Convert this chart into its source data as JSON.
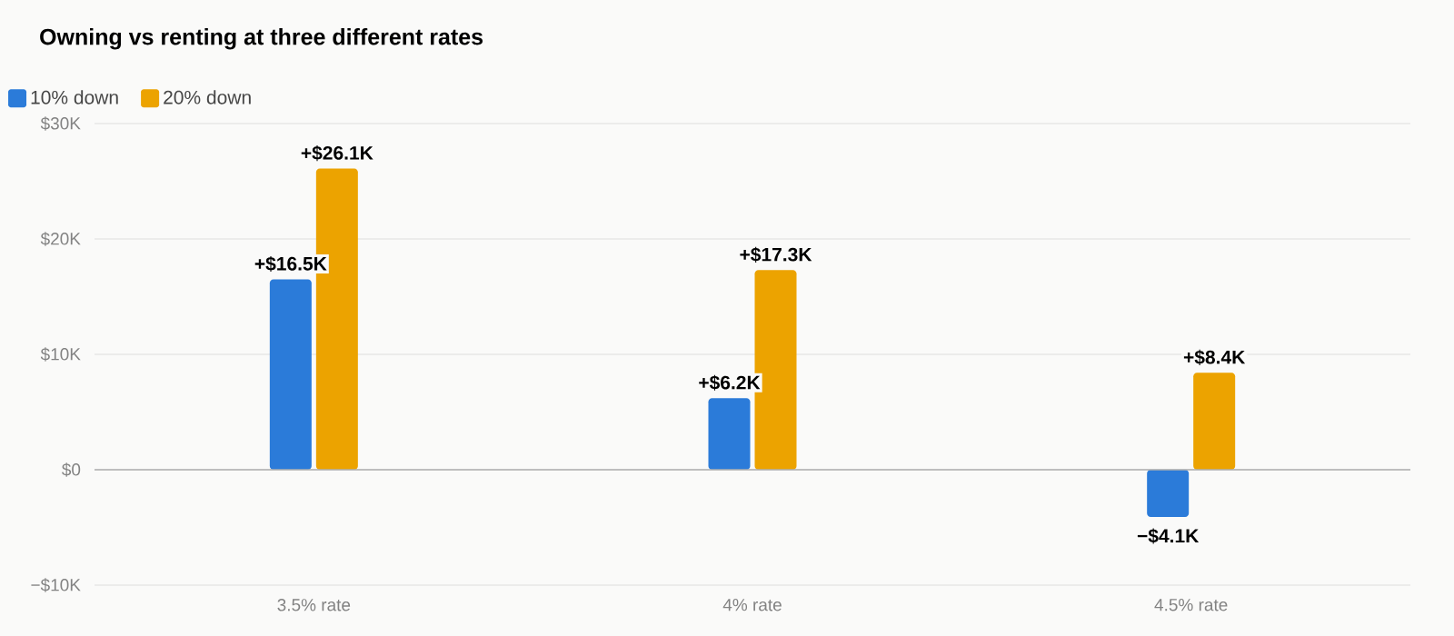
{
  "chart_data": {
    "type": "bar",
    "title": "Owning vs renting at three different rates",
    "categories": [
      "3.5% rate",
      "4% rate",
      "4.5% rate"
    ],
    "series": [
      {
        "name": "10% down",
        "color": "#2b7bd9",
        "values": [
          16.5,
          6.2,
          -4.1
        ],
        "value_labels": [
          "+$16.5K",
          "+$6.2K",
          "−$4.1K"
        ]
      },
      {
        "name": "20% down",
        "color": "#eca300",
        "values": [
          26.1,
          17.3,
          8.4
        ],
        "value_labels": [
          "+$26.1K",
          "+$17.3K",
          "+$8.4K"
        ]
      }
    ],
    "ylim": [
      -10,
      30
    ],
    "yticks": [
      {
        "value": -10,
        "label": "−$10K"
      },
      {
        "value": 0,
        "label": "$0"
      },
      {
        "value": 10,
        "label": "$10K"
      },
      {
        "value": 20,
        "label": "$20K"
      },
      {
        "value": 30,
        "label": "$30K"
      }
    ],
    "grid": "y",
    "legend": "top left"
  }
}
